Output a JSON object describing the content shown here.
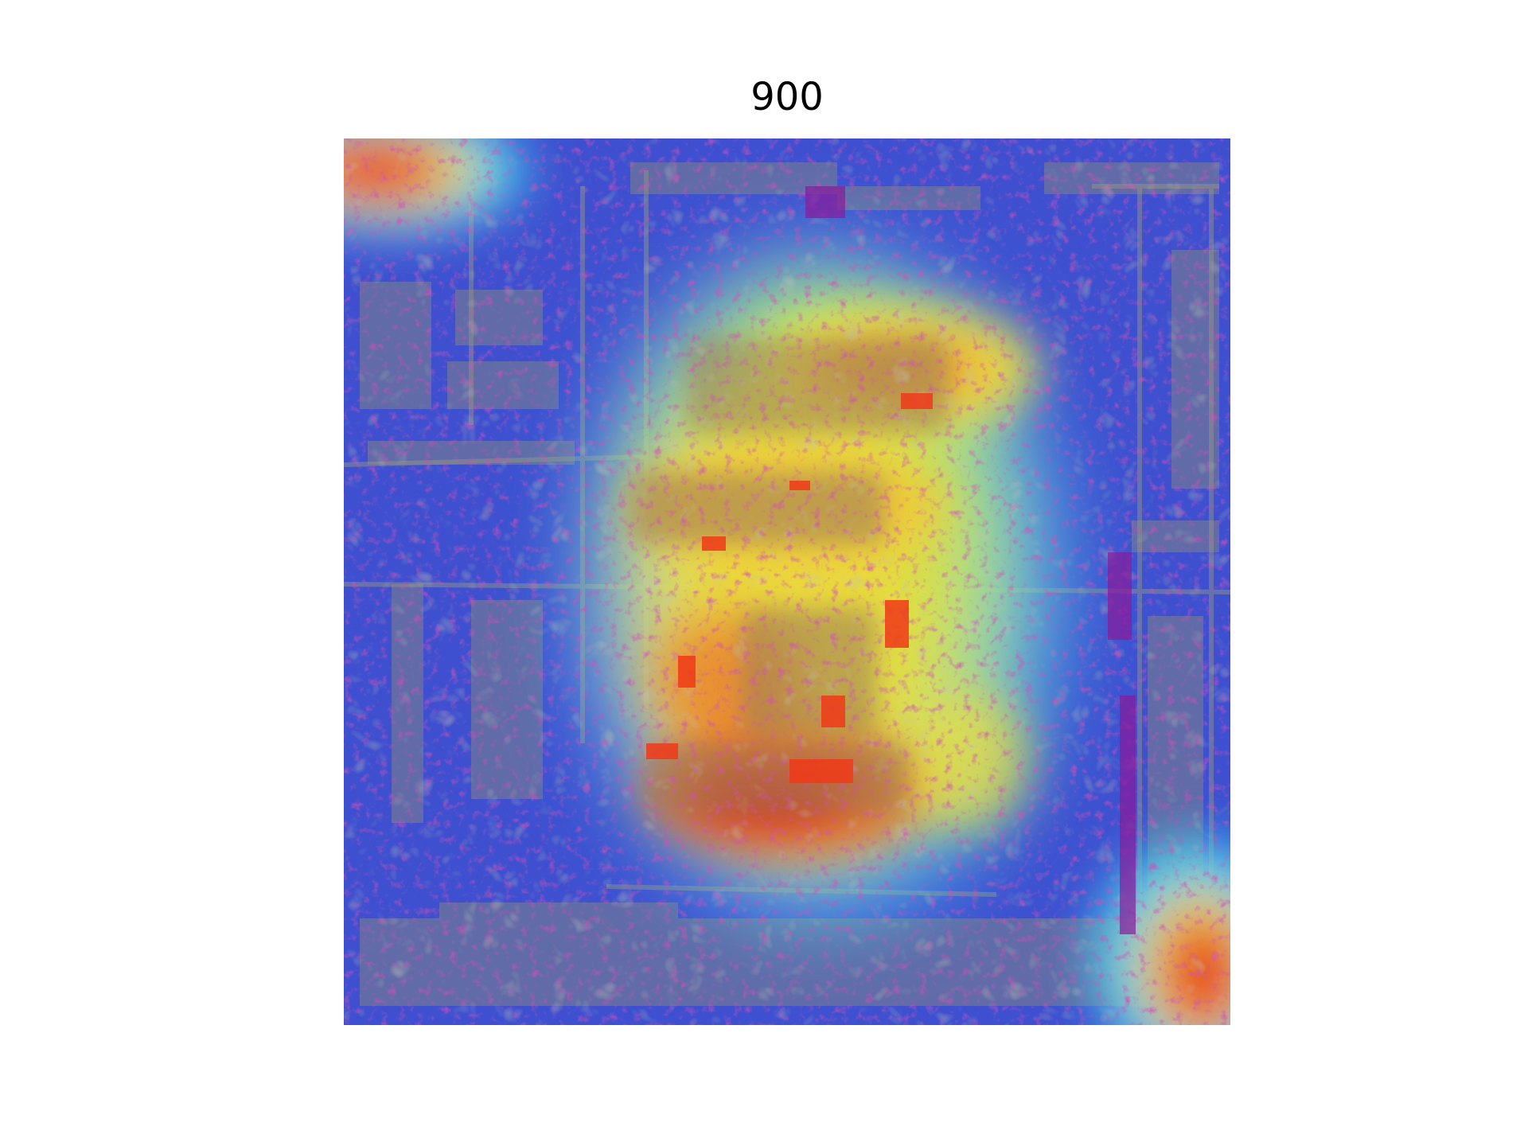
{
  "figure": {
    "title": "900"
  },
  "overlay": {
    "colormap": "jet",
    "colors": {
      "low": "#2a3fd4",
      "mid_low": "#36c8e8",
      "mid": "#e8f03a",
      "mid_high": "#f0a030",
      "high": "#e82020",
      "edge_noise": "#a0147a",
      "base_gray": "#8a8a70"
    }
  }
}
